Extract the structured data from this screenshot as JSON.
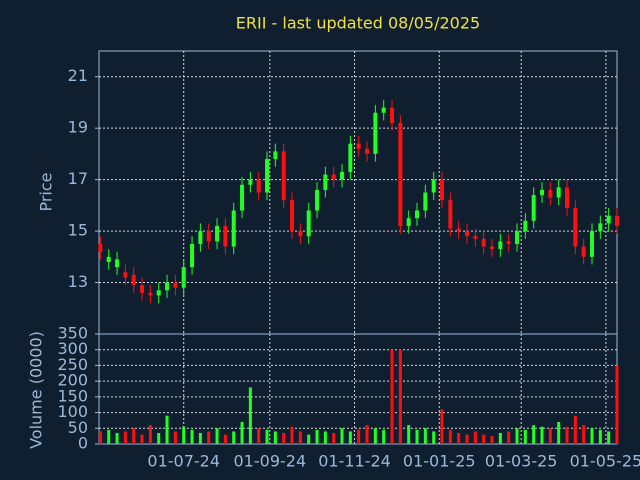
{
  "chart_data": [
    {
      "type": "candlestick",
      "title": "ERII - last updated 08/05/2025",
      "y_label": "Price",
      "x": [
        "2024-05-02",
        "2024-05-08",
        "2024-05-14",
        "2024-05-20",
        "2024-05-26",
        "2024-06-01",
        "2024-06-07",
        "2024-06-13",
        "2024-06-19",
        "2024-06-25",
        "2024-07-01",
        "2024-07-07",
        "2024-07-13",
        "2024-07-19",
        "2024-07-25",
        "2024-07-31",
        "2024-08-06",
        "2024-08-12",
        "2024-08-18",
        "2024-08-24",
        "2024-08-30",
        "2024-09-05",
        "2024-09-11",
        "2024-09-17",
        "2024-09-23",
        "2024-09-29",
        "2024-10-05",
        "2024-10-11",
        "2024-10-17",
        "2024-10-23",
        "2024-10-29",
        "2024-11-04",
        "2024-11-10",
        "2024-11-16",
        "2024-11-22",
        "2024-11-28",
        "2024-12-04",
        "2024-12-10",
        "2024-12-16",
        "2024-12-22",
        "2024-12-28",
        "2025-01-03",
        "2025-01-09",
        "2025-01-15",
        "2025-01-21",
        "2025-01-27",
        "2025-02-02",
        "2025-02-08",
        "2025-02-14",
        "2025-02-20",
        "2025-02-26",
        "2025-03-04",
        "2025-03-10",
        "2025-03-16",
        "2025-03-22",
        "2025-03-28",
        "2025-04-03",
        "2025-04-09",
        "2025-04-15",
        "2025-04-21",
        "2025-04-27",
        "2025-05-03",
        "2025-05-09"
      ],
      "open": [
        14.5,
        13.8,
        13.6,
        13.4,
        13.3,
        12.9,
        12.6,
        12.5,
        12.7,
        13.0,
        12.8,
        13.6,
        14.5,
        15.0,
        14.6,
        15.2,
        14.4,
        15.8,
        16.8,
        17.0,
        16.5,
        17.8,
        18.1,
        16.2,
        15.0,
        14.8,
        15.8,
        16.6,
        17.2,
        17.0,
        17.3,
        18.4,
        18.2,
        18.0,
        19.6,
        19.8,
        19.2,
        15.2,
        15.5,
        15.8,
        16.5,
        17.0,
        16.2,
        15.1,
        15.0,
        14.8,
        14.7,
        14.4,
        14.3,
        14.6,
        14.5,
        15.0,
        15.4,
        16.4,
        16.6,
        16.3,
        16.7,
        15.9,
        14.4,
        14.0,
        15.0,
        15.3,
        15.6
      ],
      "high": [
        14.8,
        14.3,
        14.2,
        13.7,
        13.6,
        13.2,
        12.9,
        13.0,
        13.3,
        13.3,
        13.9,
        14.8,
        15.3,
        15.3,
        15.5,
        15.5,
        16.1,
        17.1,
        17.3,
        17.3,
        18.1,
        18.4,
        18.4,
        16.5,
        15.3,
        16.1,
        16.9,
        17.5,
        17.5,
        17.6,
        18.7,
        18.7,
        18.5,
        19.9,
        20.1,
        20.1,
        19.5,
        15.8,
        16.1,
        16.8,
        17.3,
        17.3,
        16.5,
        15.4,
        15.3,
        15.1,
        15.0,
        14.7,
        14.9,
        14.9,
        15.3,
        15.7,
        16.7,
        16.9,
        16.9,
        17.0,
        17.0,
        16.2,
        14.7,
        15.3,
        15.6,
        15.9,
        15.9
      ],
      "low": [
        13.9,
        13.5,
        13.3,
        12.9,
        12.6,
        12.3,
        12.2,
        12.2,
        12.4,
        12.5,
        12.5,
        13.3,
        14.2,
        14.3,
        14.3,
        14.1,
        14.1,
        15.5,
        16.5,
        16.2,
        16.2,
        17.5,
        15.9,
        14.7,
        14.5,
        14.5,
        15.5,
        16.3,
        16.7,
        16.7,
        17.0,
        17.9,
        17.7,
        17.7,
        19.3,
        18.9,
        14.9,
        14.9,
        15.2,
        15.5,
        16.2,
        15.9,
        14.8,
        14.7,
        14.5,
        14.4,
        14.1,
        14.0,
        14.0,
        14.2,
        14.2,
        14.7,
        15.1,
        16.1,
        16.0,
        16.0,
        15.6,
        14.1,
        13.7,
        13.7,
        14.7,
        15.0,
        14.9
      ],
      "close": [
        14.2,
        14.0,
        13.9,
        13.2,
        12.9,
        12.6,
        12.5,
        12.7,
        13.0,
        12.8,
        13.6,
        14.5,
        15.0,
        14.6,
        15.2,
        14.4,
        15.8,
        16.8,
        17.0,
        16.5,
        17.8,
        18.1,
        16.2,
        15.0,
        14.8,
        15.8,
        16.6,
        17.2,
        17.0,
        17.3,
        18.4,
        18.2,
        18.0,
        19.6,
        19.8,
        19.2,
        15.2,
        15.5,
        15.8,
        16.5,
        17.0,
        16.2,
        15.1,
        15.0,
        14.8,
        14.7,
        14.4,
        14.3,
        14.6,
        14.5,
        15.0,
        15.4,
        16.4,
        16.6,
        16.3,
        16.7,
        15.9,
        14.4,
        14.0,
        15.0,
        15.3,
        15.6,
        15.2
      ],
      "up_color": "#22ff22",
      "down_color": "#ff1010",
      "xlim": [
        "2024-05-01",
        "2025-05-09"
      ],
      "xticks": [
        {
          "value": "2024-07-01",
          "label": "01-07-24"
        },
        {
          "value": "2024-09-01",
          "label": "01-09-24"
        },
        {
          "value": "2024-11-01",
          "label": "01-11-24"
        },
        {
          "value": "2025-01-01",
          "label": "01-01-25"
        },
        {
          "value": "2025-03-01",
          "label": "01-03-25"
        },
        {
          "value": "2025-05-01",
          "label": "01-05-25"
        }
      ],
      "ylim": [
        11,
        22
      ],
      "yticks": [
        13,
        15,
        17,
        19,
        21
      ],
      "grid": true
    },
    {
      "type": "bar",
      "y_label": "Volume (0000)",
      "values": [
        40,
        45,
        35,
        40,
        50,
        30,
        60,
        35,
        90,
        40,
        55,
        45,
        35,
        40,
        50,
        30,
        40,
        70,
        180,
        50,
        45,
        40,
        35,
        55,
        40,
        30,
        45,
        40,
        35,
        50,
        40,
        45,
        60,
        50,
        45,
        300,
        300,
        60,
        45,
        50,
        40,
        110,
        45,
        35,
        30,
        40,
        30,
        25,
        35,
        40,
        50,
        45,
        60,
        55,
        50,
        70,
        55,
        90,
        60,
        50,
        45,
        40,
        250
      ],
      "ylim": [
        0,
        350
      ],
      "yticks": [
        0,
        50,
        100,
        150,
        200,
        250,
        300,
        350
      ],
      "grid": true
    }
  ]
}
